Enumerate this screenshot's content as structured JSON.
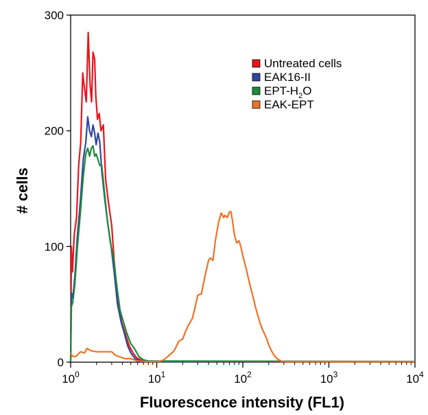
{
  "chart_data": {
    "type": "line",
    "xlabel": "Fluorescence intensity (FL1)",
    "ylabel": "# cells",
    "x_scale": "log",
    "xlim": [
      1,
      10000
    ],
    "ylim": [
      0,
      300
    ],
    "x_ticks": [
      {
        "value": 1,
        "base": "10",
        "exp": "0"
      },
      {
        "value": 10,
        "base": "10",
        "exp": "1"
      },
      {
        "value": 100,
        "base": "10",
        "exp": "2"
      },
      {
        "value": 1000,
        "base": "10",
        "exp": "3"
      },
      {
        "value": 10000,
        "base": "10",
        "exp": "4"
      }
    ],
    "y_ticks": [
      0,
      100,
      200,
      300
    ],
    "grid": false,
    "legend_position": "top-right",
    "series": [
      {
        "name": "Untreated cells",
        "legend_parts": [
          {
            "text": "Untreated cells",
            "sub": false
          }
        ],
        "color": "#e8141b",
        "points": [
          [
            1.0,
            0
          ],
          [
            1.02,
            100
          ],
          [
            1.05,
            78
          ],
          [
            1.1,
            110
          ],
          [
            1.17,
            125
          ],
          [
            1.24,
            170
          ],
          [
            1.31,
            190
          ],
          [
            1.38,
            250
          ],
          [
            1.44,
            238
          ],
          [
            1.52,
            225
          ],
          [
            1.6,
            285
          ],
          [
            1.68,
            240
          ],
          [
            1.75,
            225
          ],
          [
            1.82,
            268
          ],
          [
            1.9,
            262
          ],
          [
            1.96,
            230
          ],
          [
            2.05,
            210
          ],
          [
            2.15,
            215
          ],
          [
            2.25,
            200
          ],
          [
            2.4,
            205
          ],
          [
            2.55,
            158
          ],
          [
            2.75,
            138
          ],
          [
            3.0,
            118
          ],
          [
            3.2,
            88
          ],
          [
            3.45,
            62
          ],
          [
            3.65,
            46
          ],
          [
            3.9,
            35
          ],
          [
            4.3,
            25
          ],
          [
            4.8,
            14
          ],
          [
            5.3,
            8
          ],
          [
            5.8,
            4
          ],
          [
            6.5,
            2
          ],
          [
            8,
            1
          ],
          [
            10,
            0.5
          ],
          [
            30,
            0.3
          ],
          [
            10000,
            0.3
          ]
        ]
      },
      {
        "name": "EAK16-II",
        "legend_parts": [
          {
            "text": "EAK16-II",
            "sub": false
          }
        ],
        "color": "#2f479f",
        "points": [
          [
            1.0,
            0
          ],
          [
            1.02,
            60
          ],
          [
            1.06,
            55
          ],
          [
            1.12,
            75
          ],
          [
            1.2,
            110
          ],
          [
            1.3,
            140
          ],
          [
            1.4,
            175
          ],
          [
            1.5,
            190
          ],
          [
            1.58,
            212
          ],
          [
            1.66,
            200
          ],
          [
            1.74,
            195
          ],
          [
            1.82,
            205
          ],
          [
            1.9,
            198
          ],
          [
            1.98,
            188
          ],
          [
            2.08,
            198
          ],
          [
            2.18,
            190
          ],
          [
            2.3,
            165
          ],
          [
            2.5,
            140
          ],
          [
            2.7,
            120
          ],
          [
            2.95,
            100
          ],
          [
            3.2,
            78
          ],
          [
            3.5,
            50
          ],
          [
            3.85,
            35
          ],
          [
            4.2,
            25
          ],
          [
            4.6,
            14
          ],
          [
            5.0,
            8
          ],
          [
            5.6,
            3
          ],
          [
            6.5,
            1
          ],
          [
            8,
            0.5
          ],
          [
            10000,
            0.3
          ]
        ]
      },
      {
        "name": "EPT-H2O",
        "legend_parts": [
          {
            "text": "EPT-H",
            "sub": false
          },
          {
            "text": "2",
            "sub": true
          },
          {
            "text": "O",
            "sub": false
          }
        ],
        "color": "#1c8a3c",
        "points": [
          [
            1.0,
            0
          ],
          [
            1.02,
            48
          ],
          [
            1.06,
            52
          ],
          [
            1.12,
            68
          ],
          [
            1.2,
            100
          ],
          [
            1.3,
            130
          ],
          [
            1.4,
            160
          ],
          [
            1.5,
            180
          ],
          [
            1.58,
            185
          ],
          [
            1.66,
            178
          ],
          [
            1.74,
            185
          ],
          [
            1.82,
            187
          ],
          [
            1.9,
            178
          ],
          [
            1.98,
            180
          ],
          [
            2.08,
            175
          ],
          [
            2.18,
            170
          ],
          [
            2.3,
            170
          ],
          [
            2.45,
            150
          ],
          [
            2.65,
            125
          ],
          [
            2.9,
            103
          ],
          [
            3.15,
            90
          ],
          [
            3.45,
            65
          ],
          [
            3.75,
            45
          ],
          [
            4.1,
            35
          ],
          [
            4.5,
            25
          ],
          [
            5.0,
            16
          ],
          [
            5.5,
            12
          ],
          [
            6.2,
            5
          ],
          [
            7,
            2
          ],
          [
            8,
            1
          ],
          [
            10000,
            0.6
          ]
        ]
      },
      {
        "name": "EAK-EPT",
        "legend_parts": [
          {
            "text": "EAK-EPT",
            "sub": false
          }
        ],
        "color": "#f07125",
        "points": [
          [
            1.0,
            8
          ],
          [
            1.05,
            5
          ],
          [
            1.15,
            5
          ],
          [
            1.3,
            9
          ],
          [
            1.45,
            8
          ],
          [
            1.55,
            12
          ],
          [
            1.7,
            10
          ],
          [
            2.0,
            9
          ],
          [
            2.5,
            9
          ],
          [
            3.0,
            9
          ],
          [
            3.3,
            6
          ],
          [
            3.6,
            5
          ],
          [
            4.3,
            3
          ],
          [
            5.0,
            3
          ],
          [
            6,
            1
          ],
          [
            8,
            0.5
          ],
          [
            10,
            0.5
          ],
          [
            11,
            1
          ],
          [
            12,
            2
          ],
          [
            13,
            4
          ],
          [
            14,
            6
          ],
          [
            15,
            8
          ],
          [
            16,
            10
          ],
          [
            18,
            18
          ],
          [
            20,
            20
          ],
          [
            22,
            28
          ],
          [
            23,
            31
          ],
          [
            26,
            38
          ],
          [
            28,
            48
          ],
          [
            30,
            58
          ],
          [
            33,
            59
          ],
          [
            36,
            73
          ],
          [
            40,
            88
          ],
          [
            42,
            90
          ],
          [
            45,
            88
          ],
          [
            48,
            105
          ],
          [
            52,
            120
          ],
          [
            56,
            129
          ],
          [
            60,
            125
          ],
          [
            62,
            127
          ],
          [
            66,
            125
          ],
          [
            70,
            130
          ],
          [
            73,
            130
          ],
          [
            76,
            122
          ],
          [
            80,
            110
          ],
          [
            85,
            103
          ],
          [
            90,
            105
          ],
          [
            95,
            100
          ],
          [
            100,
            92
          ],
          [
            110,
            80
          ],
          [
            120,
            68
          ],
          [
            130,
            58
          ],
          [
            140,
            48
          ],
          [
            150,
            40
          ],
          [
            160,
            33
          ],
          [
            170,
            28
          ],
          [
            180,
            24
          ],
          [
            190,
            20
          ],
          [
            200,
            15
          ],
          [
            215,
            10
          ],
          [
            230,
            6
          ],
          [
            250,
            3
          ],
          [
            280,
            1
          ],
          [
            300,
            0.5
          ],
          [
            10000,
            0.3
          ]
        ]
      }
    ]
  }
}
